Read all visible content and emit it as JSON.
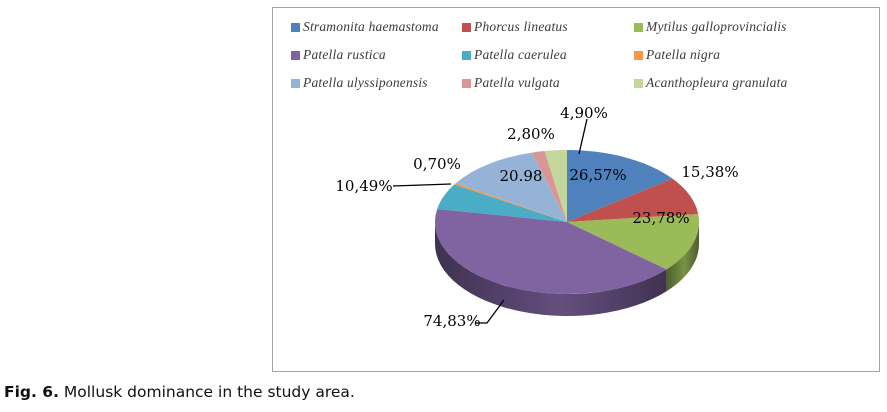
{
  "figure": {
    "caption_label": "Fig. 6.",
    "caption_text": " Mollusk dominance in the study area."
  },
  "chart_data": {
    "type": "pie",
    "style": "3d",
    "legend_position": "top",
    "slices": [
      {
        "name": "Stramonita haemastoma",
        "value": 26.57,
        "label": "26,57%",
        "color": "#4F81BD",
        "label_placement": "inside"
      },
      {
        "name": "Phorcus lineatus",
        "value": 15.38,
        "label": "15,38%",
        "color": "#C0504D",
        "label_placement": "outside-right"
      },
      {
        "name": "Mytilus galloprovincialis",
        "value": 23.78,
        "label": "23,78%",
        "color": "#9BBB59",
        "label_placement": "inside"
      },
      {
        "name": "Patella rustica",
        "value": 74.83,
        "label": "74,83%",
        "color": "#8064A2",
        "label_placement": "outside-bottom-left-leader"
      },
      {
        "name": "Patella caerulea",
        "value": 10.49,
        "label": "10,49%",
        "color": "#4BACC6",
        "label_placement": "outside-left-leader"
      },
      {
        "name": "Patella nigra",
        "value": 0.7,
        "label": "0,70%",
        "color": "#F79646",
        "label_placement": "outside-upper-left"
      },
      {
        "name": "Patella ulyssiponensis",
        "value": 20.98,
        "label": "20.98",
        "color": "#95B3D7",
        "label_placement": "inside"
      },
      {
        "name": "Patella vulgata",
        "value": 2.8,
        "label": "2,80%",
        "color": "#D99694",
        "label_placement": "outside-top"
      },
      {
        "name": "Acanthopleura granulata",
        "value": 4.9,
        "label": "4,90%",
        "color": "#C3D69B",
        "label_placement": "outside-top-leader"
      }
    ]
  }
}
